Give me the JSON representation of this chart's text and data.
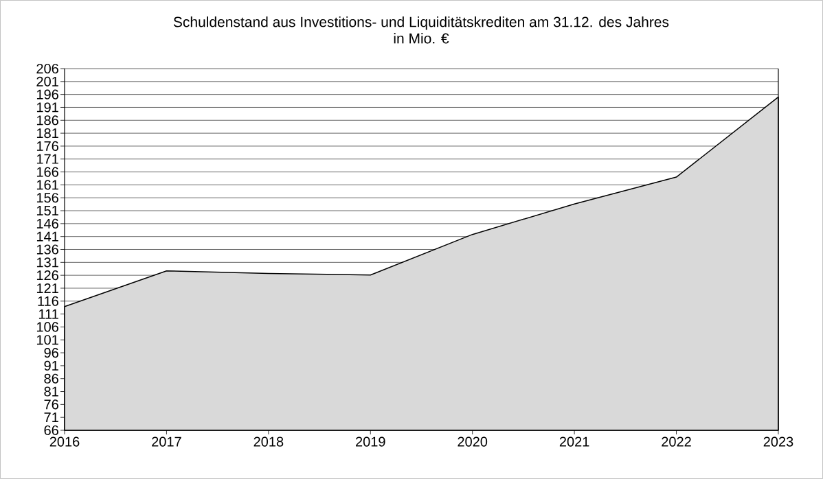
{
  "chart_data": {
    "type": "area",
    "title": "Schuldenstand aus Investitions- und Liquiditätskrediten am 31.12. des Jahres",
    "subtitle": "in Mio. €",
    "x": [
      2016,
      2017,
      2018,
      2019,
      2020,
      2021,
      2022,
      2023
    ],
    "values": [
      113.9,
      127.7,
      126.7,
      126.1,
      141.8,
      153.6,
      164.0,
      195.0
    ],
    "color": "#d9d9d9",
    "xlim": [
      2016,
      2023
    ],
    "xticks": [
      2016,
      2017,
      2018,
      2019,
      2020,
      2021,
      2022,
      2023
    ],
    "ylim": [
      66,
      206
    ],
    "yticks": [
      66,
      71,
      76,
      81,
      86,
      91,
      96,
      101,
      106,
      111,
      116,
      121,
      126,
      131,
      136,
      141,
      146,
      151,
      156,
      161,
      166,
      171,
      176,
      181,
      186,
      191,
      196,
      201,
      206
    ],
    "grid": "y",
    "marker": "none",
    "line_style": "solid"
  }
}
